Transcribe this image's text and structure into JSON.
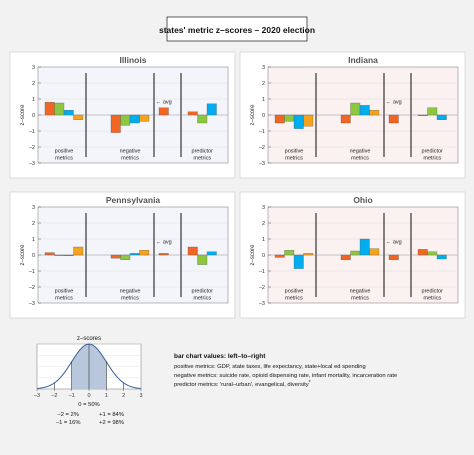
{
  "page": {
    "title": "states' metric z–scores –  2020 election",
    "panel_bg_blue": "#f3f5fb",
    "panel_bg_red": "#fbf1f1",
    "bar_colors": [
      "#f26522",
      "#8dc63f",
      "#00aeef",
      "#f7a21b"
    ]
  },
  "chart_data": [
    {
      "type": "bar",
      "title": "Illinois",
      "ylabel": "z–score",
      "ylim": [
        -3,
        3
      ],
      "yticks": [
        -3,
        -2,
        -1,
        0,
        1,
        2,
        3
      ],
      "background": "blue",
      "groups": [
        {
          "label": [
            "positive",
            "metrics"
          ],
          "values": [
            0.8,
            0.75,
            0.3,
            -0.3
          ]
        },
        {
          "label": [
            "negative",
            "metrics"
          ],
          "values": [
            -1.1,
            -0.65,
            -0.5,
            -0.4
          ]
        },
        {
          "label": [
            "← avg"
          ],
          "values": [
            0.45
          ]
        },
        {
          "label": [
            "predictor",
            "metrics"
          ],
          "values": [
            0.2,
            -0.5,
            0.7
          ]
        }
      ]
    },
    {
      "type": "bar",
      "title": "Indiana",
      "ylabel": "z–score",
      "ylim": [
        -3,
        3
      ],
      "yticks": [
        -3,
        -2,
        -1,
        0,
        1,
        2,
        3
      ],
      "background": "red",
      "groups": [
        {
          "label": [
            "positive",
            "metrics"
          ],
          "values": [
            -0.5,
            -0.4,
            -0.85,
            -0.7
          ]
        },
        {
          "label": [
            "negative",
            "metrics"
          ],
          "values": [
            -0.5,
            0.75,
            0.6,
            0.3
          ]
        },
        {
          "label": [
            "← avg"
          ],
          "values": [
            -0.5
          ]
        },
        {
          "label": [
            "predictor",
            "metrics"
          ],
          "values": [
            -0.05,
            0.45,
            -0.3
          ]
        }
      ]
    },
    {
      "type": "bar",
      "title": "Pennsylvania",
      "ylabel": "z–score",
      "ylim": [
        -3,
        3
      ],
      "yticks": [
        -3,
        -2,
        -1,
        0,
        1,
        2,
        3
      ],
      "background": "blue",
      "groups": [
        {
          "label": [
            "positive",
            "metrics"
          ],
          "values": [
            0.15,
            -0.05,
            -0.05,
            0.5
          ]
        },
        {
          "label": [
            "negative",
            "metrics"
          ],
          "values": [
            -0.2,
            -0.3,
            0.1,
            0.3
          ]
        },
        {
          "label": [
            "← avg"
          ],
          "values": [
            0.1
          ]
        },
        {
          "label": [
            "predictor",
            "metrics"
          ],
          "values": [
            0.5,
            -0.6,
            0.2
          ]
        }
      ]
    },
    {
      "type": "bar",
      "title": "Ohio",
      "ylabel": "z–score",
      "ylim": [
        -3,
        3
      ],
      "yticks": [
        -3,
        -2,
        -1,
        0,
        1,
        2,
        3
      ],
      "background": "red",
      "groups": [
        {
          "label": [
            "positive",
            "metrics"
          ],
          "values": [
            -0.15,
            0.3,
            -0.85,
            0.1
          ]
        },
        {
          "label": [
            "negative",
            "metrics"
          ],
          "values": [
            -0.3,
            0.25,
            1.0,
            0.4
          ]
        },
        {
          "label": [
            "← avg"
          ],
          "values": [
            -0.3
          ]
        },
        {
          "label": [
            "predictor",
            "metrics"
          ],
          "values": [
            0.35,
            0.2,
            -0.25
          ]
        }
      ]
    }
  ],
  "legend_chart": {
    "title": "z–scores",
    "xticks": [
      -3,
      -2,
      -1,
      0,
      1,
      2,
      3
    ],
    "ylim": [
      0,
      0.4
    ],
    "yticks": [
      0.1,
      0.2,
      0.3,
      0.4
    ],
    "shaded_range": [
      -1,
      1
    ],
    "center_note": "0 = 50%",
    "notes_left": [
      "–2 = 2%",
      "–1 = 16%"
    ],
    "notes_right": [
      "+1 = 84%",
      "+2 = 98%"
    ]
  },
  "notes": {
    "heading": "bar chart values: left–to–right",
    "lines": [
      "positive metrics:  GDP, state taxes, life expectancy, state+local ed spending",
      "negative metrics:  suicide rate, opioid dispensing rate, infant mortality, incarceration rate",
      "predictor metrics:  'rural–urban', evangelical, diversity"
    ],
    "footnote_mark": "*"
  }
}
